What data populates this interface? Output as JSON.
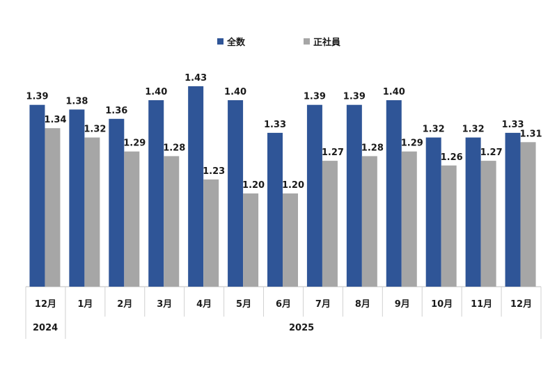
{
  "chart_data": {
    "type": "bar",
    "title": "",
    "xlabel": "",
    "ylabel": "",
    "ylim": [
      0,
      1.5
    ],
    "grid": false,
    "legend_position": "top-center",
    "categories": [
      "12月",
      "1月",
      "2月",
      "3月",
      "4月",
      "5月",
      "6月",
      "7月",
      "8月",
      "9月",
      "10月",
      "11月",
      "12月"
    ],
    "years": [
      "2024",
      "2025"
    ],
    "series": [
      {
        "name": "全数",
        "color": "#2F5597",
        "values": [
          1.39,
          1.38,
          1.36,
          1.4,
          1.43,
          1.4,
          1.33,
          1.39,
          1.39,
          1.4,
          1.32,
          1.32,
          1.33
        ],
        "labels": [
          "1.39",
          "1.38",
          "1.36",
          "1.40",
          "1.43",
          "1.40",
          "1.33",
          "1.39",
          "1.39",
          "1.40",
          "1.32",
          "1.32",
          "1.33"
        ]
      },
      {
        "name": "正社員",
        "color": "#A6A6A6",
        "values": [
          1.34,
          1.32,
          1.29,
          1.28,
          1.23,
          1.2,
          1.2,
          1.27,
          1.28,
          1.29,
          1.26,
          1.27,
          1.31
        ],
        "labels": [
          "1.34",
          "1.32",
          "1.29",
          "1.28",
          "1.23",
          "1.20",
          "1.20",
          "1.27",
          "1.28",
          "1.29",
          "1.26",
          "1.27",
          "1.31"
        ]
      }
    ]
  }
}
